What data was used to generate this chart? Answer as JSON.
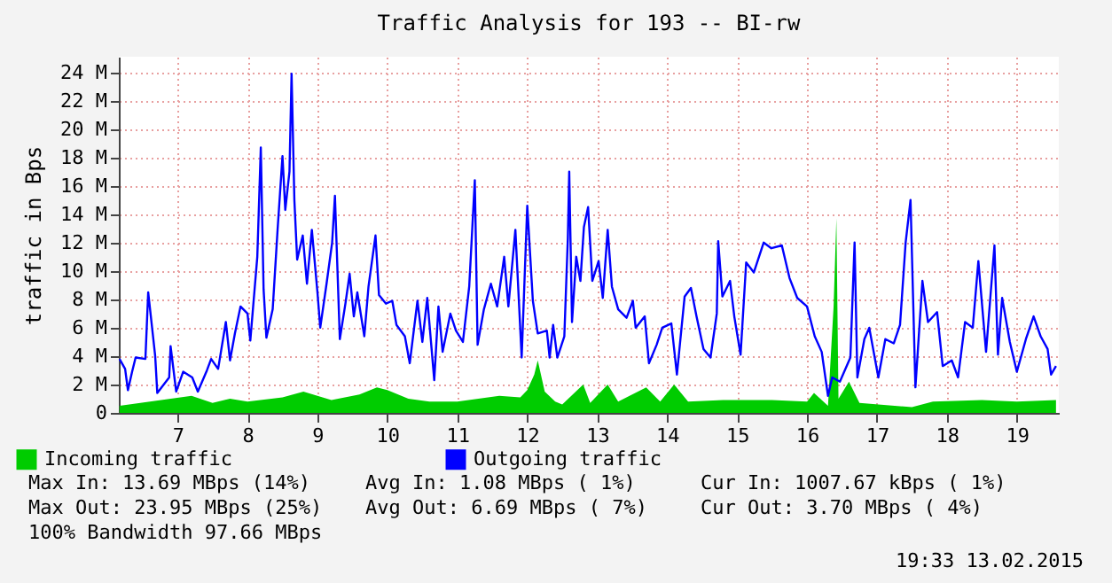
{
  "chart_data": {
    "type": "line",
    "title": "Traffic Analysis for 193 -- BI-rw",
    "ylabel": "traffic in Bps",
    "xlim": [
      6.16,
      19.6
    ],
    "xticks": [
      7,
      8,
      9,
      10,
      11,
      12,
      13,
      14,
      15,
      16,
      17,
      18,
      19
    ],
    "ylim": [
      0,
      25.1
    ],
    "yticks": [
      0,
      {
        "value": 2,
        "label": "2 M"
      },
      {
        "value": 4,
        "label": "4 M"
      },
      {
        "value": 6,
        "label": "6 M"
      },
      {
        "value": 8,
        "label": "8 M"
      },
      {
        "value": 10,
        "label": "10 M"
      },
      {
        "value": 12,
        "label": "12 M"
      },
      {
        "value": 14,
        "label": "14 M"
      },
      {
        "value": 16,
        "label": "16 M"
      },
      {
        "value": 18,
        "label": "18 M"
      },
      {
        "value": 20,
        "label": "20 M"
      },
      {
        "value": 22,
        "label": "22 M"
      },
      {
        "value": 24,
        "label": "24 M"
      }
    ],
    "grid": true,
    "legend": "bottom left",
    "series": [
      {
        "name": "Incoming traffic",
        "type": "area",
        "color": "#00cc00",
        "x": [
          6.17,
          7.2,
          7.5,
          7.75,
          8.0,
          8.5,
          8.8,
          9.2,
          9.6,
          9.85,
          10.0,
          10.3,
          10.6,
          11.0,
          11.3,
          11.6,
          11.9,
          12.0,
          12.1,
          12.15,
          12.25,
          12.4,
          12.5,
          12.8,
          12.9,
          13.15,
          13.3,
          13.7,
          13.9,
          14.1,
          14.3,
          14.8,
          15.5,
          16.0,
          16.1,
          16.3,
          16.38,
          16.42,
          16.45,
          16.6,
          16.75,
          17.5,
          17.8,
          18.5,
          19.0,
          19.56
        ],
        "values": [
          0.5,
          1.2,
          0.7,
          1.0,
          0.8,
          1.1,
          1.5,
          0.9,
          1.3,
          1.8,
          1.6,
          1.0,
          0.8,
          0.8,
          1.0,
          1.2,
          1.1,
          1.6,
          2.7,
          3.7,
          1.5,
          0.8,
          0.6,
          2.0,
          0.7,
          2.0,
          0.8,
          1.8,
          0.8,
          2.0,
          0.8,
          0.9,
          0.9,
          0.8,
          1.4,
          0.5,
          7.5,
          13.7,
          1.0,
          2.2,
          0.7,
          0.4,
          0.8,
          0.9,
          0.8,
          0.9
        ]
      },
      {
        "name": "Outgoing traffic",
        "color": "#0000ff",
        "x": [
          6.17,
          6.25,
          6.29,
          6.35,
          6.4,
          6.54,
          6.58,
          6.62,
          6.68,
          6.71,
          6.88,
          6.9,
          6.98,
          7.08,
          7.21,
          7.29,
          7.42,
          7.48,
          7.58,
          7.69,
          7.75,
          7.82,
          7.9,
          8.0,
          8.04,
          8.14,
          8.19,
          8.23,
          8.27,
          8.36,
          8.43,
          8.5,
          8.54,
          8.6,
          8.63,
          8.67,
          8.71,
          8.79,
          8.85,
          8.92,
          9.0,
          9.04,
          9.13,
          9.21,
          9.25,
          9.32,
          9.4,
          9.46,
          9.52,
          9.57,
          9.67,
          9.73,
          9.83,
          9.88,
          9.98,
          10.07,
          10.13,
          10.25,
          10.32,
          10.43,
          10.5,
          10.57,
          10.67,
          10.73,
          10.79,
          10.9,
          10.98,
          11.08,
          11.17,
          11.25,
          11.29,
          11.38,
          11.48,
          11.57,
          11.67,
          11.73,
          11.83,
          11.92,
          12.0,
          12.08,
          12.15,
          12.28,
          12.32,
          12.37,
          12.43,
          12.53,
          12.58,
          12.6,
          12.64,
          12.7,
          12.76,
          12.81,
          12.87,
          12.93,
          13.02,
          13.08,
          13.15,
          13.21,
          13.3,
          13.42,
          13.51,
          13.55,
          13.68,
          13.74,
          13.85,
          13.93,
          14.06,
          14.14,
          14.25,
          14.34,
          14.42,
          14.52,
          14.62,
          14.71,
          14.73,
          14.79,
          14.9,
          14.96,
          15.05,
          15.13,
          15.24,
          15.38,
          15.49,
          15.64,
          15.75,
          15.86,
          16.0,
          16.11,
          16.21,
          16.3,
          16.36,
          16.47,
          16.62,
          16.68,
          16.72,
          16.82,
          16.89,
          17.02,
          17.12,
          17.24,
          17.33,
          17.41,
          17.48,
          17.55,
          17.65,
          17.73,
          17.86,
          17.94,
          18.07,
          18.16,
          18.26,
          18.37,
          18.45,
          18.56,
          18.68,
          18.73,
          18.79,
          18.9,
          19.0,
          19.13,
          19.24,
          19.34,
          19.44,
          19.49,
          19.56
        ],
        "values": [
          3.8,
          3.1,
          1.6,
          2.9,
          3.9,
          3.8,
          8.5,
          6.7,
          4.0,
          1.4,
          2.5,
          4.7,
          1.5,
          2.9,
          2.5,
          1.5,
          3.0,
          3.8,
          3.1,
          6.4,
          3.7,
          5.6,
          7.5,
          7.0,
          5.1,
          11.0,
          18.7,
          8.7,
          5.3,
          7.3,
          12.9,
          18.1,
          14.3,
          17.0,
          23.9,
          15.0,
          10.8,
          12.5,
          9.1,
          12.9,
          8.5,
          6.0,
          9.1,
          12.0,
          15.3,
          5.2,
          7.7,
          9.8,
          6.8,
          8.5,
          5.4,
          8.9,
          12.5,
          8.3,
          7.7,
          7.9,
          6.2,
          5.4,
          3.5,
          7.9,
          5.0,
          8.1,
          2.3,
          7.5,
          4.3,
          7.0,
          5.8,
          5.0,
          8.9,
          16.4,
          4.8,
          7.3,
          9.1,
          7.5,
          11.0,
          7.5,
          12.9,
          3.9,
          14.6,
          7.9,
          5.6,
          5.8,
          3.9,
          6.2,
          3.9,
          5.4,
          12.3,
          17.0,
          6.4,
          11.0,
          9.3,
          13.1,
          14.5,
          9.3,
          10.7,
          8.1,
          12.9,
          8.9,
          7.3,
          6.7,
          7.9,
          6.0,
          6.8,
          3.5,
          4.8,
          6.0,
          6.3,
          2.7,
          8.2,
          8.8,
          6.8,
          4.5,
          3.9,
          7.0,
          12.1,
          8.2,
          9.3,
          6.8,
          4.1,
          10.6,
          9.9,
          12.0,
          11.6,
          11.8,
          9.5,
          8.1,
          7.5,
          5.4,
          4.3,
          1.2,
          2.5,
          2.2,
          3.9,
          12.0,
          2.5,
          5.2,
          6.0,
          2.5,
          5.2,
          4.9,
          6.2,
          12.0,
          15.0,
          1.8,
          9.3,
          6.4,
          7.1,
          3.3,
          3.7,
          2.5,
          6.4,
          6.0,
          10.7,
          4.3,
          11.8,
          4.1,
          8.1,
          5.0,
          2.9,
          5.2,
          6.8,
          5.4,
          4.5,
          2.7,
          3.3
        ]
      }
    ],
    "annotations": [
      "Max In: 13.69 MBps (14%)",
      "Avg In: 1.08 MBps ( 1%)",
      "Cur In: 1007.67 kBps ( 1%)",
      "Max Out: 23.95 MBps (25%)",
      "Avg Out: 6.69 MBps ( 7%)",
      "Cur Out: 3.70 MBps ( 4%)",
      "100% Bandwidth 97.66 MBps",
      "19:33 13.02.2015"
    ]
  }
}
